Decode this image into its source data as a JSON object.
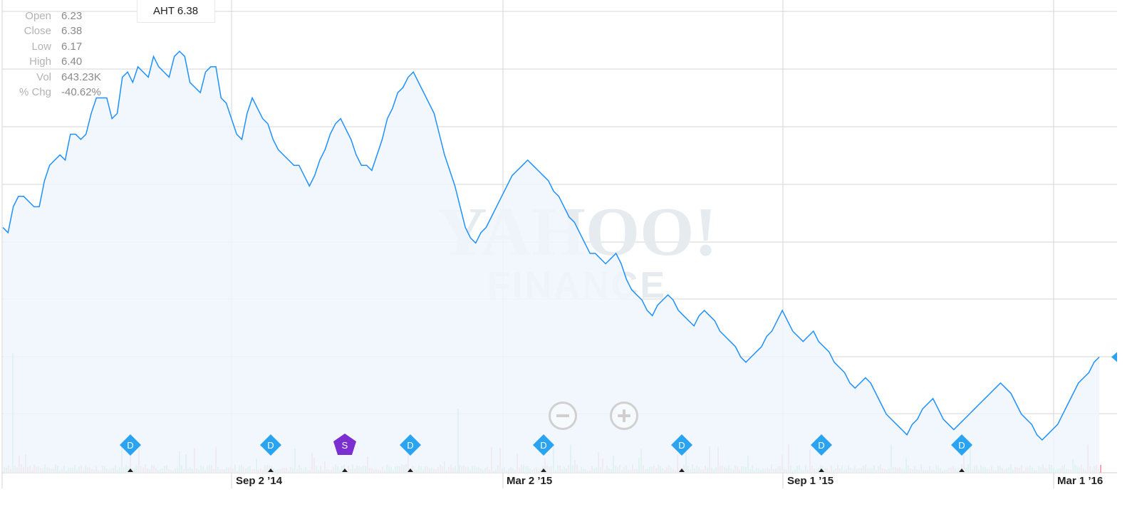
{
  "ticker": {
    "label": "AHT 6.38"
  },
  "ohlc": [
    {
      "label": "Open",
      "value": "6.23"
    },
    {
      "label": "Close",
      "value": "6.38"
    },
    {
      "label": "Low",
      "value": "6.17"
    },
    {
      "label": "High",
      "value": "6.40"
    },
    {
      "label": "Vol",
      "value": "643.23K"
    },
    {
      "label": "% Chg",
      "value": "-40.62%"
    }
  ],
  "watermark": {
    "line1": "YAHOO!",
    "line2": "FINANCE"
  },
  "colors": {
    "line": "#1e90ff",
    "area": "#eef6fc",
    "grid": "#d6d6d6",
    "vol_up": "#8fe0b4",
    "vol_down": "#f4a7b7",
    "dividend": "#2aa3f0",
    "split": "#7b2fd0"
  },
  "chart_data": {
    "type": "line",
    "title": "",
    "xlabel": "",
    "ylabel": "",
    "x_tick_labels": [
      "Sep 2 ’14",
      "Mar 2 ’15",
      "Sep 1 ’15",
      "Mar 1 ’16"
    ],
    "x_range": [
      "2014-03-20",
      "2016-03-18"
    ],
    "grid": true,
    "legend": "none",
    "series": [
      {
        "values": [
          100,
          99,
          104,
          106,
          106,
          105,
          104,
          104,
          109,
          112,
          113,
          114,
          113,
          118,
          118,
          117,
          118,
          122,
          125,
          125,
          125,
          121,
          122,
          129,
          130,
          128,
          131,
          130,
          129,
          133,
          131,
          130,
          129,
          133,
          134,
          133,
          128,
          127,
          126,
          130,
          131,
          131,
          125,
          124,
          121,
          118,
          117,
          122,
          125,
          123,
          121,
          120,
          117,
          115,
          114,
          113,
          112,
          112,
          110,
          108,
          110,
          113,
          115,
          118,
          120,
          121,
          119,
          117,
          114,
          112,
          112,
          111,
          114,
          117,
          121,
          123,
          126,
          127,
          129,
          130,
          128,
          126,
          124,
          122,
          118,
          114,
          111,
          108,
          104,
          100,
          98,
          97,
          99,
          100,
          102,
          104,
          106,
          108,
          110,
          111,
          112,
          113,
          112,
          111,
          110,
          109,
          107,
          106,
          104,
          102,
          101,
          99,
          97,
          95,
          95,
          94,
          93,
          94,
          95,
          93,
          90,
          88,
          87,
          86,
          84,
          83,
          85,
          86,
          87,
          86,
          84,
          83,
          82,
          81,
          83,
          84,
          83,
          82,
          80,
          79,
          78,
          77,
          75,
          74,
          75,
          76,
          77,
          79,
          80,
          82,
          84,
          82,
          80,
          79,
          78,
          79,
          80,
          78,
          77,
          76,
          74,
          73,
          72,
          70,
          69,
          70,
          71,
          70,
          68,
          66,
          64,
          63,
          62,
          61,
          60,
          62,
          63,
          65,
          66,
          67,
          65,
          63,
          62,
          61,
          62,
          63,
          64,
          65,
          66,
          67,
          68,
          69,
          70,
          69,
          68,
          66,
          64,
          63,
          62,
          60,
          59,
          60,
          61,
          62,
          64,
          66,
          68,
          70,
          71,
          72,
          74,
          75
        ]
      }
    ],
    "volume_markers": [
      {
        "x": "Apr 21 ’14",
        "type": "dividend",
        "label": "D"
      },
      {
        "x": "Jul 22 ’14",
        "type": "dividend",
        "label": "D"
      },
      {
        "x": "Oct 29 ’14",
        "type": "split",
        "label": "S"
      },
      {
        "x": "Dec 9 ’14",
        "type": "dividend",
        "label": "D"
      },
      {
        "x": "Mar 26 ’15",
        "type": "dividend",
        "label": "D"
      },
      {
        "x": "Jun 25 ’15",
        "type": "dividend",
        "label": "D"
      },
      {
        "x": "Sep 24 ’15",
        "type": "dividend",
        "label": "D"
      },
      {
        "x": "Dec 21 ’15",
        "type": "dividend",
        "label": "D"
      }
    ]
  }
}
